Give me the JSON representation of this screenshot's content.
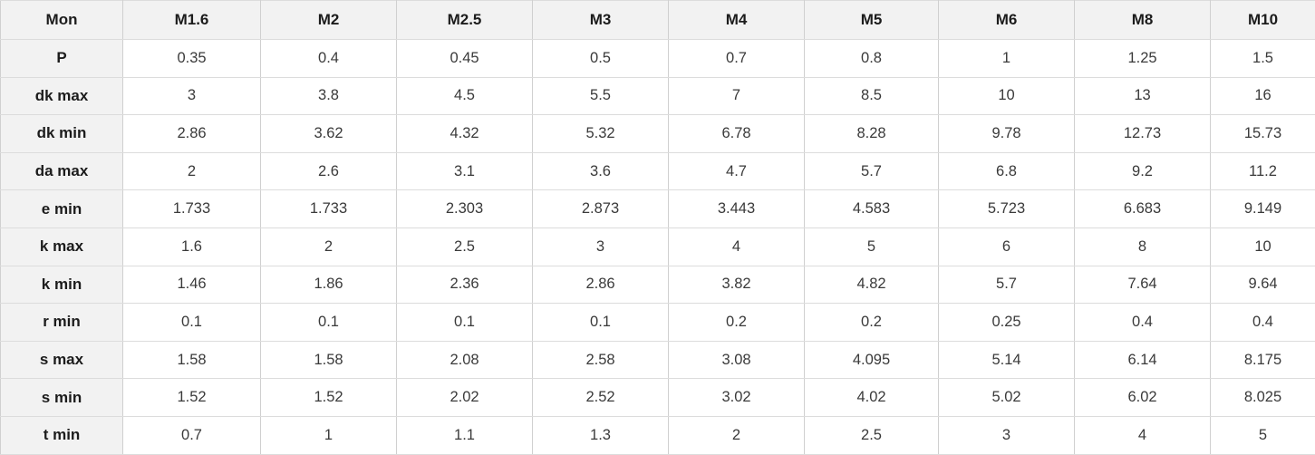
{
  "colors": {
    "header_bg": "#f2f2f2",
    "cell_bg": "#ffffff",
    "border_horizontal": "#dcdcdc",
    "border_vertical": "#d0d0d0",
    "label_text": "#1c1c1c",
    "value_text": "#3a3a3a"
  },
  "chart_data": {
    "type": "table",
    "columns": [
      "Mon",
      "M1.6",
      "M2",
      "M2.5",
      "M3",
      "M4",
      "M5",
      "M6",
      "M8",
      "M10"
    ],
    "rows": [
      {
        "label": "P",
        "values": [
          "0.35",
          "0.4",
          "0.45",
          "0.5",
          "0.7",
          "0.8",
          "1",
          "1.25",
          "1.5"
        ]
      },
      {
        "label": "dk max",
        "values": [
          "3",
          "3.8",
          "4.5",
          "5.5",
          "7",
          "8.5",
          "10",
          "13",
          "16"
        ]
      },
      {
        "label": "dk min",
        "values": [
          "2.86",
          "3.62",
          "4.32",
          "5.32",
          "6.78",
          "8.28",
          "9.78",
          "12.73",
          "15.73"
        ]
      },
      {
        "label": "da max",
        "values": [
          "2",
          "2.6",
          "3.1",
          "3.6",
          "4.7",
          "5.7",
          "6.8",
          "9.2",
          "11.2"
        ]
      },
      {
        "label": "e min",
        "values": [
          "1.733",
          "1.733",
          "2.303",
          "2.873",
          "3.443",
          "4.583",
          "5.723",
          "6.683",
          "9.149"
        ]
      },
      {
        "label": "k max",
        "values": [
          "1.6",
          "2",
          "2.5",
          "3",
          "4",
          "5",
          "6",
          "8",
          "10"
        ]
      },
      {
        "label": "k min",
        "values": [
          "1.46",
          "1.86",
          "2.36",
          "2.86",
          "3.82",
          "4.82",
          "5.7",
          "7.64",
          "9.64"
        ]
      },
      {
        "label": "r min",
        "values": [
          "0.1",
          "0.1",
          "0.1",
          "0.1",
          "0.2",
          "0.2",
          "0.25",
          "0.4",
          "0.4"
        ]
      },
      {
        "label": "s max",
        "values": [
          "1.58",
          "1.58",
          "2.08",
          "2.58",
          "3.08",
          "4.095",
          "5.14",
          "6.14",
          "8.175"
        ]
      },
      {
        "label": "s min",
        "values": [
          "1.52",
          "1.52",
          "2.02",
          "2.52",
          "3.02",
          "4.02",
          "5.02",
          "6.02",
          "8.025"
        ]
      },
      {
        "label": "t min",
        "values": [
          "0.7",
          "1",
          "1.1",
          "1.3",
          "2",
          "2.5",
          "3",
          "4",
          "5"
        ]
      }
    ]
  }
}
